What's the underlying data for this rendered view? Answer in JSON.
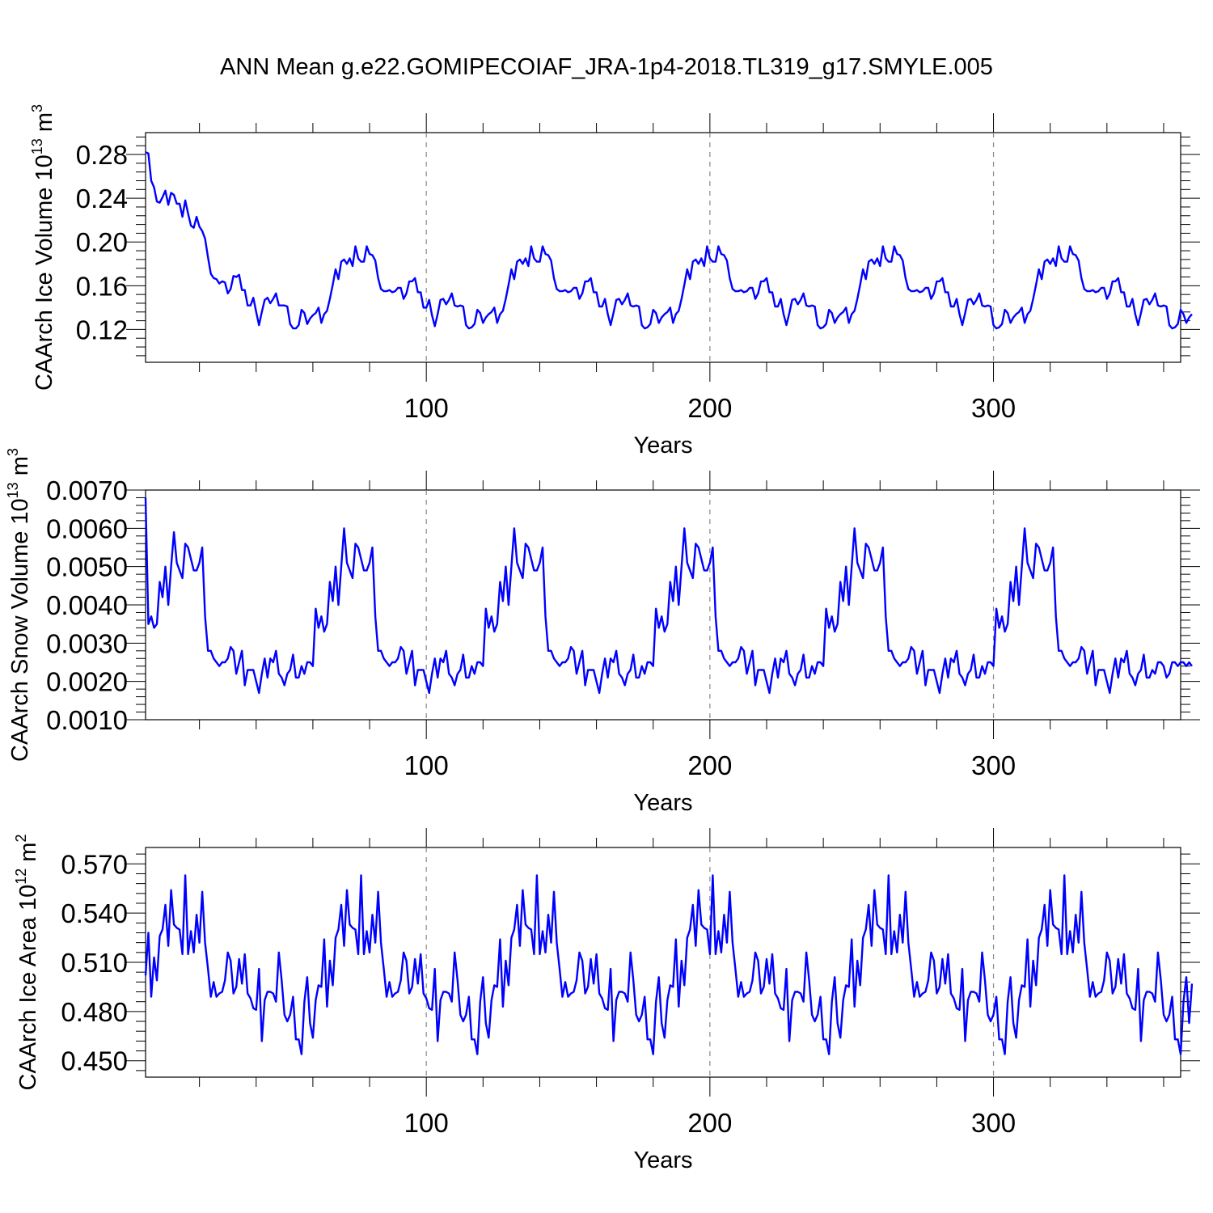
{
  "title": "ANN Mean g.e22.GOMIPECOIAF_JRA-1p4-2018.TL319_g17.SMYLE.005",
  "colors": {
    "series": "#0000ff",
    "frame": "#000000",
    "reference_lines": "#888888"
  },
  "chart_data": [
    {
      "type": "line",
      "panel": "top",
      "ylabel": "CAArch Ice Volume 10",
      "ylabel_exp": "13",
      "ylabel_unit": " m",
      "ylabel_unit_exp": "3",
      "xlabel": "Years",
      "xlim": [
        1,
        366
      ],
      "ylim": [
        0.09,
        0.3
      ],
      "x_ticks": [
        100,
        200,
        300
      ],
      "x_tick_labels": [
        "100",
        "200",
        "300"
      ],
      "y_ticks": [
        0.12,
        0.16,
        0.2,
        0.24,
        0.28
      ],
      "y_tick_labels": [
        "0.12",
        "0.16",
        "0.20",
        "0.24",
        "0.28"
      ],
      "reference_lines_x": [
        100,
        200,
        300
      ],
      "grid": false,
      "x_start": 1,
      "y_segment_1": [
        0.282,
        0.281,
        0.256,
        0.25,
        0.237,
        0.236,
        0.241,
        0.247,
        0.234,
        0.245,
        0.243,
        0.235,
        0.235,
        0.223,
        0.238,
        0.226,
        0.215,
        0.213,
        0.223,
        0.214,
        0.21,
        0.203,
        0.186,
        0.171,
        0.167,
        0.166,
        0.162,
        0.164,
        0.163,
        0.153,
        0.157,
        0.169,
        0.168,
        0.17,
        0.156,
        0.156,
        0.142,
        0.142,
        0.149,
        0.136,
        0.124,
        0.136,
        0.147,
        0.149,
        0.144,
        0.148,
        0.153,
        0.142,
        0.142,
        0.142,
        0.141,
        0.125,
        0.121,
        0.121,
        0.124,
        0.138,
        0.135,
        0.125,
        0.13,
        0.133,
        0.135,
        0.14,
        0.126,
        0.134,
        0.137,
        0.148,
        0.161,
        0.175,
        0.166,
        0.182,
        0.184,
        0.18,
        0.185,
        0.178,
        0.196,
        0.185,
        0.182,
        0.182,
        0.196,
        0.189,
        0.188,
        0.183,
        0.167,
        0.157,
        0.155,
        0.155,
        0.156,
        0.154,
        0.155,
        0.158,
        0.158,
        0.148,
        0.153,
        0.164,
        0.164,
        0.167,
        0.154,
        0.154
      ],
      "y_segment_2": [
        0.14,
        0.14,
        0.147,
        0.133,
        0.123,
        0.134,
        0.147,
        0.148,
        0.143,
        0.147,
        0.153,
        0.142,
        0.141,
        0.142,
        0.141,
        0.124,
        0.121,
        0.122,
        0.125,
        0.138,
        0.135,
        0.126,
        0.131,
        0.134,
        0.136,
        0.14,
        0.126,
        0.134,
        0.137,
        0.148,
        0.161,
        0.175,
        0.166,
        0.182,
        0.184,
        0.18,
        0.185,
        0.178,
        0.196,
        0.185,
        0.182,
        0.182,
        0.196,
        0.189,
        0.188,
        0.183,
        0.167,
        0.157,
        0.155,
        0.155,
        0.156,
        0.154,
        0.155,
        0.158,
        0.158,
        0.148,
        0.153,
        0.164,
        0.164,
        0.167,
        0.154,
        0.154,
        0.141,
        0.141,
        0.148,
        0.134,
        0.124,
        0.135,
        0.147,
        0.148,
        0.143,
        0.147,
        0.153,
        0.142,
        0.141,
        0.142,
        0.141,
        0.124,
        0.121,
        0.122,
        0.125,
        0.138,
        0.135,
        0.126,
        0.131,
        0.134,
        0.136,
        0.14,
        0.126,
        0.134,
        0.137,
        0.148,
        0.161,
        0.175,
        0.166,
        0.182,
        0.184,
        0.18
      ],
      "y_segment_3": [
        0.185,
        0.178,
        0.196,
        0.185,
        0.182,
        0.182,
        0.196,
        0.189,
        0.188,
        0.183,
        0.167,
        0.157,
        0.155,
        0.155,
        0.156,
        0.154,
        0.155,
        0.158,
        0.158,
        0.148,
        0.153,
        0.164,
        0.164,
        0.167,
        0.154,
        0.154,
        0.141,
        0.141,
        0.148,
        0.134,
        0.124,
        0.135,
        0.147,
        0.148,
        0.143,
        0.147,
        0.153,
        0.142,
        0.141,
        0.142,
        0.141,
        0.124,
        0.121,
        0.122,
        0.125,
        0.138,
        0.135,
        0.126,
        0.131,
        0.134,
        0.136,
        0.14,
        0.126,
        0.134,
        0.137,
        0.148,
        0.161,
        0.175,
        0.166,
        0.182,
        0.184,
        0.18,
        0.185,
        0.178,
        0.196,
        0.185,
        0.182,
        0.182,
        0.196,
        0.189,
        0.188,
        0.183,
        0.167,
        0.157,
        0.155,
        0.155,
        0.156,
        0.154,
        0.155,
        0.158,
        0.158,
        0.148,
        0.153,
        0.164,
        0.164,
        0.167,
        0.154,
        0.154,
        0.141,
        0.141,
        0.148,
        0.134,
        0.124,
        0.135,
        0.147,
        0.148,
        0.143,
        0.147
      ],
      "y_segment_4": [
        0.153,
        0.142,
        0.141,
        0.142,
        0.141,
        0.124,
        0.121,
        0.122,
        0.125,
        0.138,
        0.135,
        0.126,
        0.131,
        0.134,
        0.136,
        0.14,
        0.126,
        0.134,
        0.137,
        0.148,
        0.161,
        0.175,
        0.166,
        0.182,
        0.184,
        0.18,
        0.185,
        0.178,
        0.196,
        0.185,
        0.182,
        0.182,
        0.196,
        0.189,
        0.188,
        0.183,
        0.167,
        0.157,
        0.155,
        0.155,
        0.156,
        0.154,
        0.155,
        0.158,
        0.158,
        0.148,
        0.153,
        0.164,
        0.164,
        0.167,
        0.154,
        0.154,
        0.141,
        0.141,
        0.148,
        0.134,
        0.124,
        0.135,
        0.147,
        0.148,
        0.143,
        0.147,
        0.153,
        0.142,
        0.141,
        0.142,
        0.141,
        0.124,
        0.121,
        0.122,
        0.125,
        0.138,
        0.134,
        0.126,
        0.131,
        0.134
      ]
    },
    {
      "type": "line",
      "panel": "middle",
      "ylabel": "CAArch Snow Volume 10",
      "ylabel_exp": "13",
      "ylabel_unit": " m",
      "ylabel_unit_exp": "3",
      "xlabel": "Years",
      "xlim": [
        1,
        366
      ],
      "ylim": [
        0.001,
        0.007
      ],
      "x_ticks": [
        100,
        200,
        300
      ],
      "x_tick_labels": [
        "100",
        "200",
        "300"
      ],
      "y_ticks": [
        0.001,
        0.002,
        0.003,
        0.004,
        0.005,
        0.006,
        0.007
      ],
      "y_tick_labels": [
        "0.0010",
        "0.0020",
        "0.0030",
        "0.0040",
        "0.0050",
        "0.0060",
        "0.0070"
      ],
      "reference_lines_x": [
        100,
        200,
        300
      ],
      "grid": false,
      "x_start": 1,
      "y_segment_1": [
        0.0068,
        0.0035,
        0.0037,
        0.0034,
        0.0035,
        0.0046,
        0.0042,
        0.005,
        0.004,
        0.005,
        0.0059,
        0.0051,
        0.0049,
        0.0047,
        0.0056,
        0.0055,
        0.0052,
        0.0049,
        0.0049,
        0.0051,
        0.0055,
        0.0037,
        0.0028,
        0.0028,
        0.0026,
        0.0025,
        0.0024,
        0.0025,
        0.0025,
        0.0026,
        0.0029,
        0.0028,
        0.0022,
        0.0025,
        0.0028,
        0.0019,
        0.0023,
        0.0023,
        0.0023,
        0.002,
        0.0017,
        0.0022,
        0.0026,
        0.0021,
        0.0026,
        0.0025,
        0.0028,
        0.0022,
        0.0021,
        0.0019,
        0.0022,
        0.0023,
        0.0027,
        0.0021,
        0.0021,
        0.0024,
        0.0022,
        0.0025,
        0.0025,
        0.0024,
        0.0039,
        0.0034,
        0.0037,
        0.0033,
        0.0035,
        0.0046,
        0.0041,
        0.005,
        0.004,
        0.005,
        0.006,
        0.0051,
        0.0049,
        0.0047,
        0.0056,
        0.0055,
        0.0052,
        0.0049,
        0.0049,
        0.0051,
        0.0055,
        0.0037,
        0.0028,
        0.0028,
        0.0026,
        0.0025,
        0.0024,
        0.0025,
        0.0025,
        0.0026,
        0.0029,
        0.0028,
        0.0022,
        0.0025,
        0.0028,
        0.0019,
        0.0023,
        0.0023
      ],
      "y_segment_2": [
        0.0023,
        0.002,
        0.0017,
        0.0022,
        0.0026,
        0.0021,
        0.0026,
        0.0025,
        0.0028,
        0.0022,
        0.0021,
        0.0019,
        0.0022,
        0.0023,
        0.0027,
        0.0021,
        0.0021,
        0.0024,
        0.0022,
        0.0025,
        0.0025,
        0.0024,
        0.0039,
        0.0034,
        0.0037,
        0.0033,
        0.0035,
        0.0046,
        0.0041,
        0.005,
        0.004,
        0.005,
        0.006,
        0.0051,
        0.0049,
        0.0047,
        0.0056,
        0.0055,
        0.0052,
        0.0049,
        0.0049,
        0.0051,
        0.0055,
        0.0037,
        0.0028,
        0.0028,
        0.0026,
        0.0025,
        0.0024,
        0.0025,
        0.0025,
        0.0026,
        0.0029,
        0.0028,
        0.0022,
        0.0025,
        0.0028,
        0.0019,
        0.0023,
        0.0023,
        0.0023,
        0.002,
        0.0017,
        0.0022,
        0.0026,
        0.0021,
        0.0026,
        0.0025,
        0.0028,
        0.0022,
        0.0021,
        0.0019,
        0.0022,
        0.0023,
        0.0027,
        0.0021,
        0.0021,
        0.0024,
        0.0022,
        0.0025,
        0.0025,
        0.0024,
        0.0039,
        0.0034,
        0.0037,
        0.0033,
        0.0035,
        0.0046,
        0.0041,
        0.005,
        0.004,
        0.005,
        0.006,
        0.0051,
        0.0049,
        0.0047,
        0.0056,
        0.0055
      ],
      "y_segment_3": [
        0.0052,
        0.0049,
        0.0049,
        0.0051,
        0.0055,
        0.0037,
        0.0028,
        0.0028,
        0.0026,
        0.0025,
        0.0024,
        0.0025,
        0.0025,
        0.0026,
        0.0029,
        0.0028,
        0.0022,
        0.0025,
        0.0028,
        0.0019,
        0.0023,
        0.0023,
        0.0023,
        0.002,
        0.0017,
        0.0022,
        0.0026,
        0.0021,
        0.0026,
        0.0025,
        0.0028,
        0.0022,
        0.0021,
        0.0019,
        0.0022,
        0.0023,
        0.0027,
        0.0021,
        0.0021,
        0.0024,
        0.0022,
        0.0025,
        0.0025,
        0.0024,
        0.0039,
        0.0034,
        0.0037,
        0.0033,
        0.0035,
        0.0046,
        0.0041,
        0.005,
        0.004,
        0.005,
        0.006,
        0.0051,
        0.0049,
        0.0047,
        0.0056,
        0.0055,
        0.0052,
        0.0049,
        0.0049,
        0.0051,
        0.0055,
        0.0037,
        0.0028,
        0.0028,
        0.0026,
        0.0025,
        0.0024,
        0.0025,
        0.0025,
        0.0026,
        0.0029,
        0.0028,
        0.0022,
        0.0025,
        0.0028,
        0.0019,
        0.0023,
        0.0023,
        0.0023,
        0.002,
        0.0017,
        0.0022,
        0.0026,
        0.0021,
        0.0026,
        0.0025,
        0.0028,
        0.0022,
        0.0021,
        0.0019,
        0.0022,
        0.0023,
        0.0027,
        0.0021
      ],
      "y_segment_4": [
        0.0021,
        0.0024,
        0.0022,
        0.0025,
        0.0025,
        0.0024,
        0.0039,
        0.0034,
        0.0037,
        0.0033,
        0.0035,
        0.0046,
        0.0041,
        0.005,
        0.004,
        0.005,
        0.006,
        0.0051,
        0.0049,
        0.0047,
        0.0056,
        0.0055,
        0.0052,
        0.0049,
        0.0049,
        0.0051,
        0.0055,
        0.0037,
        0.0028,
        0.0028,
        0.0026,
        0.0025,
        0.0024,
        0.0025,
        0.0025,
        0.0026,
        0.0029,
        0.0028,
        0.0022,
        0.0025,
        0.0028,
        0.0019,
        0.0023,
        0.0023,
        0.0023,
        0.002,
        0.0017,
        0.0022,
        0.0026,
        0.0021,
        0.0026,
        0.0025,
        0.0028,
        0.0022,
        0.0021,
        0.0019,
        0.0022,
        0.0023,
        0.0027,
        0.0021,
        0.0021,
        0.0023,
        0.0022,
        0.0025,
        0.0025,
        0.0024,
        0.0021,
        0.0022,
        0.0025,
        0.0025,
        0.0024,
        0.0025,
        0.0025,
        0.0024,
        0.0025,
        0.0024
      ]
    },
    {
      "type": "line",
      "panel": "bottom",
      "ylabel": "CAArch Ice Area 10",
      "ylabel_exp": "12",
      "ylabel_unit": " m",
      "ylabel_unit_exp": "2",
      "xlabel": "Years",
      "xlim": [
        1,
        366
      ],
      "ylim": [
        0.44,
        0.58
      ],
      "x_ticks": [
        100,
        200,
        300
      ],
      "x_tick_labels": [
        "100",
        "200",
        "300"
      ],
      "y_ticks": [
        0.45,
        0.48,
        0.51,
        0.54,
        0.57
      ],
      "y_tick_labels": [
        "0.450",
        "0.480",
        "0.510",
        "0.540",
        "0.570"
      ],
      "reference_lines_x": [
        100,
        200,
        300
      ],
      "grid": false,
      "x_start": 1,
      "y_segment_1": [
        0.502,
        0.528,
        0.489,
        0.513,
        0.499,
        0.526,
        0.53,
        0.545,
        0.52,
        0.554,
        0.533,
        0.531,
        0.53,
        0.515,
        0.563,
        0.515,
        0.529,
        0.516,
        0.539,
        0.522,
        0.553,
        0.522,
        0.506,
        0.489,
        0.498,
        0.489,
        0.491,
        0.492,
        0.499,
        0.516,
        0.511,
        0.491,
        0.495,
        0.512,
        0.497,
        0.515,
        0.491,
        0.488,
        0.482,
        0.481,
        0.506,
        0.462,
        0.487,
        0.492,
        0.492,
        0.491,
        0.486,
        0.516,
        0.499,
        0.478,
        0.474,
        0.478,
        0.489,
        0.463,
        0.463,
        0.454,
        0.486,
        0.501,
        0.473,
        0.464,
        0.487,
        0.496,
        0.495,
        0.524,
        0.483,
        0.511,
        0.496,
        0.525,
        0.53,
        0.545,
        0.52,
        0.554,
        0.533,
        0.531,
        0.53,
        0.515,
        0.563,
        0.515,
        0.529,
        0.516,
        0.539,
        0.522,
        0.553,
        0.522,
        0.506,
        0.489,
        0.498,
        0.489,
        0.491,
        0.492,
        0.499,
        0.516,
        0.511,
        0.491,
        0.495,
        0.512,
        0.497,
        0.515
      ],
      "y_segment_2": [
        0.491,
        0.488,
        0.482,
        0.481,
        0.506,
        0.462,
        0.487,
        0.492,
        0.492,
        0.491,
        0.486,
        0.516,
        0.499,
        0.478,
        0.474,
        0.478,
        0.489,
        0.463,
        0.463,
        0.454,
        0.486,
        0.501,
        0.473,
        0.464,
        0.487,
        0.496,
        0.495,
        0.524,
        0.483,
        0.511,
        0.496,
        0.525,
        0.53,
        0.545,
        0.52,
        0.554,
        0.533,
        0.531,
        0.53,
        0.515,
        0.563,
        0.515,
        0.529,
        0.516,
        0.539,
        0.522,
        0.553,
        0.522,
        0.506,
        0.489,
        0.498,
        0.489,
        0.491,
        0.492,
        0.499,
        0.516,
        0.511,
        0.491,
        0.495,
        0.512,
        0.497,
        0.515,
        0.491,
        0.488,
        0.482,
        0.481,
        0.506,
        0.462,
        0.487,
        0.492,
        0.492,
        0.491,
        0.486,
        0.516,
        0.499,
        0.478,
        0.474,
        0.478,
        0.489,
        0.463,
        0.463,
        0.454,
        0.486,
        0.501,
        0.473,
        0.464,
        0.487,
        0.496,
        0.495,
        0.524,
        0.483,
        0.511,
        0.496,
        0.525,
        0.53,
        0.545,
        0.52,
        0.554
      ],
      "y_segment_3": [
        0.533,
        0.531,
        0.53,
        0.515,
        0.563,
        0.515,
        0.529,
        0.516,
        0.539,
        0.522,
        0.553,
        0.522,
        0.506,
        0.489,
        0.498,
        0.489,
        0.491,
        0.492,
        0.499,
        0.516,
        0.511,
        0.491,
        0.495,
        0.512,
        0.497,
        0.515,
        0.491,
        0.488,
        0.482,
        0.481,
        0.506,
        0.462,
        0.487,
        0.492,
        0.492,
        0.491,
        0.486,
        0.516,
        0.499,
        0.478,
        0.474,
        0.478,
        0.489,
        0.463,
        0.463,
        0.454,
        0.486,
        0.501,
        0.473,
        0.464,
        0.487,
        0.496,
        0.495,
        0.524,
        0.483,
        0.511,
        0.496,
        0.525,
        0.53,
        0.545,
        0.52,
        0.554,
        0.533,
        0.531,
        0.53,
        0.515,
        0.563,
        0.515,
        0.529,
        0.516,
        0.539,
        0.522,
        0.553,
        0.522,
        0.506,
        0.489,
        0.498,
        0.489,
        0.491,
        0.492,
        0.499,
        0.516,
        0.511,
        0.491,
        0.495,
        0.512,
        0.497,
        0.515,
        0.491,
        0.488,
        0.482,
        0.481,
        0.506,
        0.462,
        0.487,
        0.492,
        0.492,
        0.491
      ],
      "y_segment_4": [
        0.486,
        0.516,
        0.499,
        0.478,
        0.474,
        0.478,
        0.489,
        0.463,
        0.463,
        0.454,
        0.486,
        0.501,
        0.473,
        0.464,
        0.487,
        0.496,
        0.495,
        0.524,
        0.483,
        0.511,
        0.496,
        0.525,
        0.53,
        0.545,
        0.52,
        0.554,
        0.533,
        0.531,
        0.53,
        0.515,
        0.563,
        0.515,
        0.529,
        0.516,
        0.539,
        0.522,
        0.553,
        0.522,
        0.506,
        0.489,
        0.498,
        0.489,
        0.491,
        0.492,
        0.499,
        0.516,
        0.511,
        0.491,
        0.495,
        0.512,
        0.497,
        0.515,
        0.491,
        0.488,
        0.482,
        0.481,
        0.506,
        0.462,
        0.487,
        0.492,
        0.492,
        0.491,
        0.486,
        0.516,
        0.499,
        0.478,
        0.474,
        0.478,
        0.489,
        0.463,
        0.463,
        0.454,
        0.486,
        0.501,
        0.473,
        0.497
      ]
    }
  ]
}
